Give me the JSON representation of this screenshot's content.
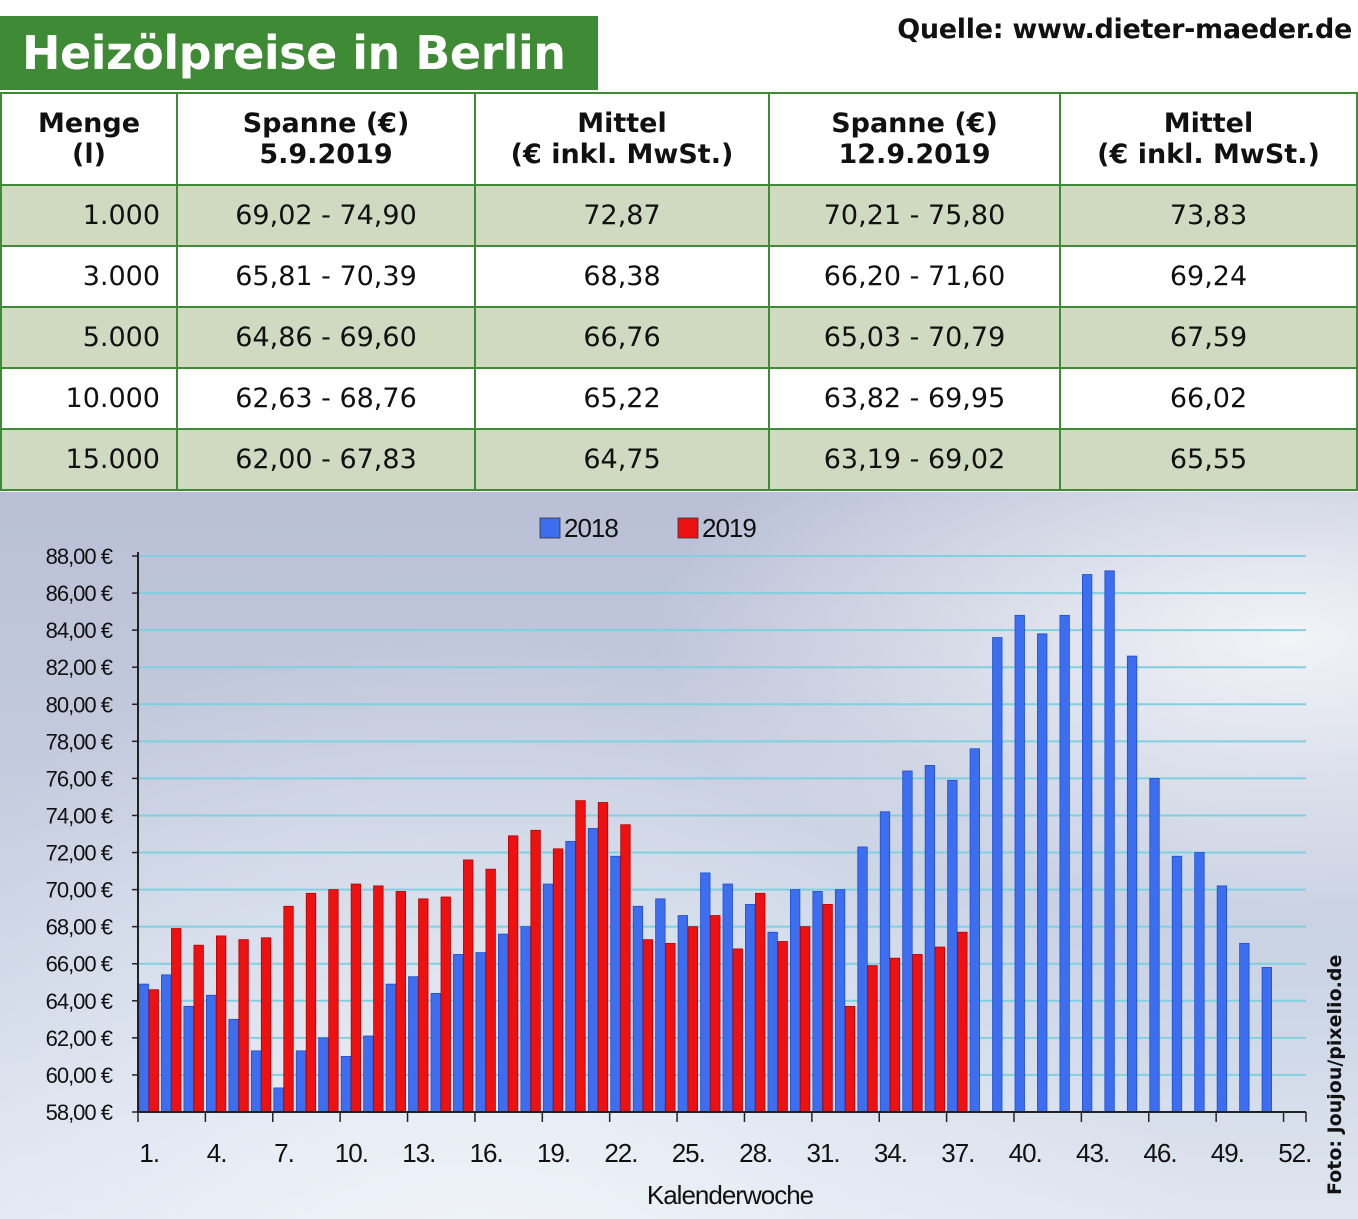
{
  "title": "Heizölpreise in Berlin",
  "source": "Quelle: www.dieter-maeder.de",
  "photo_credit": "Foto: Joujou/pixelio.de",
  "table": {
    "headers": [
      [
        "Menge",
        "(l)"
      ],
      [
        "Spanne (€)",
        "5.9.2019"
      ],
      [
        "Mittel",
        "(€ inkl. MwSt.)"
      ],
      [
        "Spanne (€)",
        "12.9.2019"
      ],
      [
        "Mittel",
        "(€ inkl. MwSt.)"
      ]
    ],
    "rows": [
      [
        "1.000",
        "69,02 - 74,90",
        "72,87",
        "70,21 - 75,80",
        "73,83"
      ],
      [
        "3.000",
        "65,81 - 70,39",
        "68,38",
        "66,20 - 71,60",
        "69,24"
      ],
      [
        "5.000",
        "64,86 - 69,60",
        "66,76",
        "65,03 - 70,79",
        "67,59"
      ],
      [
        "10.000",
        "62,63 - 68,76",
        "65,22",
        "63,82 - 69,95",
        "66,02"
      ],
      [
        "15.000",
        "62,00 - 67,83",
        "64,75",
        "63,19 - 69,02",
        "65,55"
      ]
    ]
  },
  "colors": {
    "green": "#3f8a35",
    "shade": "#d0dac0",
    "blue": "#3d6ef0",
    "red": "#ee1111",
    "grid": "#7fd0e0"
  },
  "chart_data": {
    "type": "bar",
    "xlabel": "Kalenderwoche",
    "ylabel": "",
    "ylim": [
      58,
      88
    ],
    "ytick_step": 2,
    "ytick_suffix": " €",
    "grid": true,
    "legend": "top-center",
    "x_tick_labels": [
      "1.",
      "4.",
      "7.",
      "10.",
      "13.",
      "16.",
      "19.",
      "22.",
      "25.",
      "28.",
      "31.",
      "34.",
      "37.",
      "40.",
      "43.",
      "46.",
      "49.",
      "52."
    ],
    "x_tick_weeks": [
      1,
      4,
      7,
      10,
      13,
      16,
      19,
      22,
      25,
      28,
      31,
      34,
      37,
      40,
      43,
      46,
      49,
      52
    ],
    "weeks": [
      1,
      2,
      3,
      4,
      5,
      6,
      7,
      8,
      9,
      10,
      11,
      12,
      13,
      14,
      15,
      16,
      17,
      18,
      19,
      20,
      21,
      22,
      23,
      24,
      25,
      26,
      27,
      28,
      29,
      30,
      31,
      32,
      33,
      34,
      35,
      36,
      37,
      38,
      39,
      40,
      41,
      42,
      43,
      44,
      45,
      46,
      47,
      48,
      49,
      50,
      51,
      52
    ],
    "series": [
      {
        "name": "2018",
        "color": "#3d6ef0",
        "values": [
          64.9,
          65.4,
          63.7,
          64.3,
          63.0,
          61.3,
          59.3,
          61.3,
          62.0,
          61.0,
          62.1,
          64.9,
          65.3,
          64.4,
          66.5,
          66.6,
          67.6,
          68.0,
          70.3,
          72.6,
          73.3,
          71.8,
          69.1,
          69.5,
          68.6,
          70.9,
          70.3,
          69.2,
          67.7,
          70.0,
          69.9,
          70.0,
          72.3,
          74.2,
          76.4,
          76.7,
          75.9,
          77.6,
          83.6,
          84.8,
          83.8,
          84.8,
          87.0,
          87.2,
          82.6,
          76.0,
          71.8,
          72.0,
          70.2,
          67.1,
          65.8,
          null
        ]
      },
      {
        "name": "2019",
        "color": "#ee1111",
        "values": [
          64.6,
          67.9,
          67.0,
          67.5,
          67.3,
          67.4,
          69.1,
          69.8,
          70.0,
          70.3,
          70.2,
          69.9,
          69.5,
          69.6,
          71.6,
          71.1,
          72.9,
          73.2,
          72.2,
          74.8,
          74.7,
          73.5,
          67.3,
          67.1,
          68.0,
          68.6,
          66.8,
          69.8,
          67.2,
          68.0,
          69.2,
          63.7,
          65.9,
          66.3,
          66.5,
          66.9,
          67.7,
          null,
          null,
          null,
          null,
          null,
          null,
          null,
          null,
          null,
          null,
          null,
          null,
          null,
          null,
          null
        ]
      }
    ]
  }
}
